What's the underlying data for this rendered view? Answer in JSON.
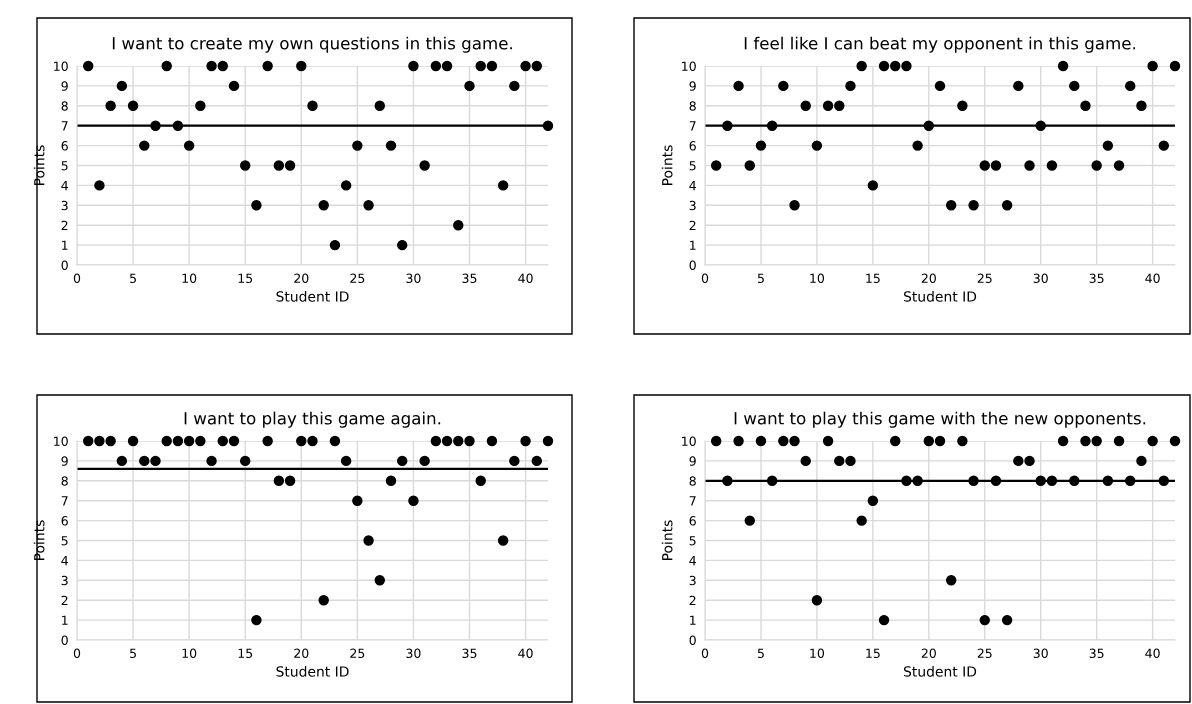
{
  "chart_data": [
    {
      "type": "scatter",
      "title": "I want to create my own questions in this game.",
      "xlabel": "Student ID",
      "ylabel": "Points",
      "xlim": [
        0,
        42
      ],
      "xticks": [
        0,
        5,
        10,
        15,
        20,
        25,
        30,
        35,
        40
      ],
      "ylim": [
        0,
        10
      ],
      "yticks": [
        0,
        1,
        2,
        3,
        4,
        5,
        6,
        7,
        8,
        9,
        10
      ],
      "grid": true,
      "marker": "circle",
      "x": [
        1,
        2,
        3,
        4,
        5,
        6,
        7,
        8,
        9,
        10,
        11,
        12,
        13,
        14,
        15,
        16,
        17,
        18,
        19,
        20,
        21,
        22,
        23,
        24,
        25,
        26,
        27,
        28,
        29,
        30,
        31,
        32,
        33,
        34,
        35,
        36,
        37,
        38,
        39,
        40,
        41,
        42
      ],
      "series": [
        {
          "color": "#000000",
          "values": [
            10,
            4,
            8,
            9,
            8,
            6,
            7,
            10,
            7,
            6,
            8,
            10,
            10,
            9,
            5,
            3,
            10,
            5,
            5,
            10,
            8,
            3,
            1,
            4,
            6,
            3,
            8,
            6,
            1,
            10,
            5,
            10,
            10,
            2,
            9,
            10,
            10,
            4,
            9,
            10,
            10,
            7
          ]
        }
      ],
      "ref_lines": [
        {
          "axis": "y",
          "value": 7,
          "color": "#000000"
        }
      ]
    },
    {
      "type": "scatter",
      "title": "I feel like I can beat my opponent in this game.",
      "xlabel": "Student ID",
      "ylabel": "Points",
      "xlim": [
        0,
        42
      ],
      "xticks": [
        0,
        5,
        10,
        15,
        20,
        25,
        30,
        35,
        40
      ],
      "ylim": [
        0,
        10
      ],
      "yticks": [
        0,
        1,
        2,
        3,
        4,
        5,
        6,
        7,
        8,
        9,
        10
      ],
      "grid": true,
      "marker": "circle",
      "x": [
        1,
        2,
        3,
        4,
        5,
        6,
        7,
        8,
        9,
        10,
        11,
        12,
        13,
        14,
        15,
        16,
        17,
        18,
        19,
        20,
        21,
        22,
        23,
        24,
        25,
        26,
        27,
        28,
        29,
        30,
        31,
        32,
        33,
        34,
        35,
        36,
        37,
        38,
        39,
        40,
        41,
        42
      ],
      "series": [
        {
          "color": "#000000",
          "values": [
            5,
            7,
            9,
            5,
            6,
            7,
            9,
            3,
            8,
            6,
            8,
            8,
            9,
            10,
            4,
            10,
            10,
            10,
            6,
            7,
            9,
            3,
            8,
            3,
            5,
            5,
            3,
            9,
            5,
            7,
            5,
            10,
            9,
            8,
            5,
            6,
            5,
            9,
            8,
            10,
            6,
            10
          ]
        }
      ],
      "ref_lines": [
        {
          "axis": "y",
          "value": 7,
          "color": "#000000"
        }
      ]
    },
    {
      "type": "scatter",
      "title": "I want to play this game again.",
      "xlabel": "Student ID",
      "ylabel": "Points",
      "xlim": [
        0,
        42
      ],
      "xticks": [
        0,
        5,
        10,
        15,
        20,
        25,
        30,
        35,
        40
      ],
      "ylim": [
        0,
        10
      ],
      "yticks": [
        0,
        1,
        2,
        3,
        4,
        5,
        6,
        7,
        8,
        9,
        10
      ],
      "grid": true,
      "marker": "circle",
      "x": [
        1,
        2,
        3,
        4,
        5,
        6,
        7,
        8,
        9,
        10,
        11,
        12,
        13,
        14,
        15,
        16,
        17,
        18,
        19,
        20,
        21,
        22,
        23,
        24,
        25,
        26,
        27,
        28,
        29,
        30,
        31,
        32,
        33,
        34,
        35,
        36,
        37,
        38,
        39,
        40,
        41,
        42
      ],
      "series": [
        {
          "color": "#000000",
          "values": [
            10,
            10,
            10,
            9,
            10,
            9,
            9,
            10,
            10,
            10,
            10,
            9,
            10,
            10,
            9,
            1,
            10,
            8,
            8,
            10,
            10,
            2,
            10,
            9,
            7,
            5,
            3,
            8,
            9,
            7,
            9,
            10,
            10,
            10,
            10,
            8,
            10,
            5,
            9,
            10,
            9,
            10
          ]
        }
      ],
      "ref_lines": [
        {
          "axis": "y",
          "value": 8.6,
          "color": "#000000"
        }
      ]
    },
    {
      "type": "scatter",
      "title": "I want to play this game with the new opponents.",
      "xlabel": "Student ID",
      "ylabel": "Points",
      "xlim": [
        0,
        42
      ],
      "xticks": [
        0,
        5,
        10,
        15,
        20,
        25,
        30,
        35,
        40
      ],
      "ylim": [
        0,
        10
      ],
      "yticks": [
        0,
        1,
        2,
        3,
        4,
        5,
        6,
        7,
        8,
        9,
        10
      ],
      "grid": true,
      "marker": "circle",
      "x": [
        1,
        2,
        3,
        4,
        5,
        6,
        7,
        8,
        9,
        10,
        11,
        12,
        13,
        14,
        15,
        16,
        17,
        18,
        19,
        20,
        21,
        22,
        23,
        24,
        25,
        26,
        27,
        28,
        29,
        30,
        31,
        32,
        33,
        34,
        35,
        36,
        37,
        38,
        39,
        40,
        41,
        42
      ],
      "series": [
        {
          "color": "#000000",
          "values": [
            10,
            8,
            10,
            6,
            10,
            8,
            10,
            10,
            9,
            2,
            10,
            9,
            9,
            6,
            7,
            1,
            10,
            8,
            8,
            10,
            10,
            3,
            10,
            8,
            1,
            8,
            1,
            9,
            9,
            8,
            8,
            10,
            8,
            10,
            10,
            8,
            10,
            8,
            9,
            10,
            8,
            10
          ]
        }
      ],
      "ref_lines": [
        {
          "axis": "y",
          "value": 8,
          "color": "#000000"
        }
      ]
    }
  ]
}
